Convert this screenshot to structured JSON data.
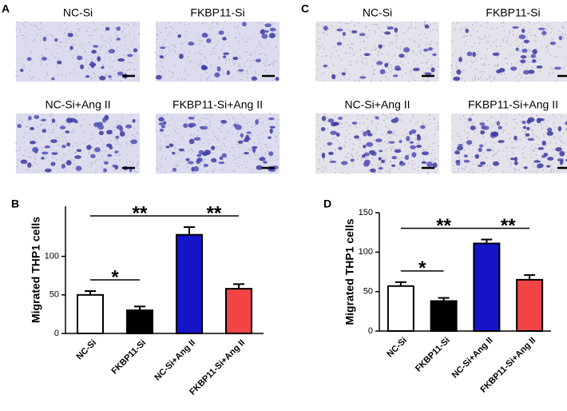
{
  "image_panels": [
    {
      "letter": "A",
      "images": [
        "NC-Si",
        "FKBP11-Si",
        "NC-Si+Ang II",
        "FKBP11-Si+Ang II"
      ]
    },
    {
      "letter": "C",
      "images": [
        "NC-Si",
        "FKBP11-Si",
        "NC-Si+Ang II",
        "FKBP11-Si+Ang II"
      ]
    }
  ],
  "chart_data": [
    {
      "type": "bar",
      "letter": "B",
      "y_label": "Migrated THP1 cells",
      "categories": [
        "NC-Si",
        "FKBP11-Si",
        "NC-Si+Ang II",
        "FKBP11-Si+Ang II"
      ],
      "values": [
        50,
        30,
        128,
        58
      ],
      "error": [
        5,
        5,
        10,
        6
      ],
      "colors": [
        "#ffffff",
        "#000000",
        "#1414c8",
        "#f24444"
      ],
      "ylim": [
        0,
        165
      ],
      "yticks": [
        0,
        50,
        100
      ],
      "annotations": [
        {
          "text": "**",
          "from": "NC-Si",
          "to": "NC-Si+Ang II"
        },
        {
          "text": "**",
          "from": "NC-Si+Ang II",
          "to": "FKBP11-Si+Ang II"
        },
        {
          "text": "*",
          "from": "NC-Si",
          "to": "FKBP11-Si"
        }
      ]
    },
    {
      "type": "bar",
      "letter": "D",
      "y_label": "Migrated THP1 cells",
      "categories": [
        "NC-Si",
        "FKBP11-Si",
        "NC-Si+Ang II",
        "FKBP11-Si+Ang II"
      ],
      "values": [
        57,
        38,
        111,
        65
      ],
      "error": [
        5,
        4,
        5,
        6
      ],
      "colors": [
        "#ffffff",
        "#000000",
        "#1414c8",
        "#f24444"
      ],
      "ylim": [
        0,
        150
      ],
      "yticks": [
        0,
        50,
        100,
        150
      ],
      "annotations": [
        {
          "text": "**",
          "from": "NC-Si",
          "to": "NC-Si+Ang II"
        },
        {
          "text": "**",
          "from": "NC-Si+Ang II",
          "to": "FKBP11-Si+Ang II"
        },
        {
          "text": "*",
          "from": "NC-Si",
          "to": "FKBP11-Si"
        }
      ]
    }
  ]
}
